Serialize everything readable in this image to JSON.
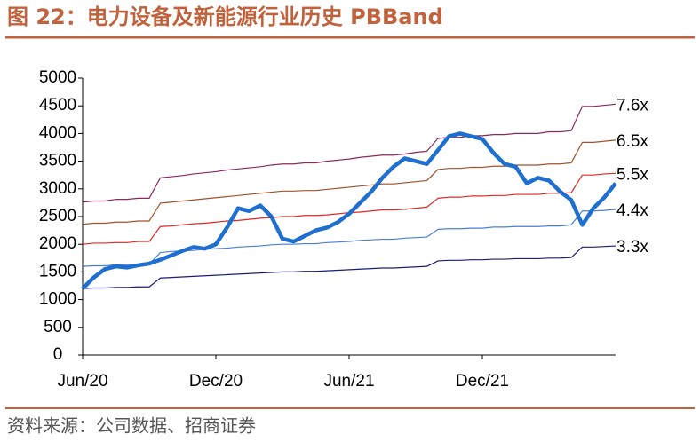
{
  "chart_data": {
    "type": "line",
    "title": "图 22：电力设备及新能源行业历史 PBBand",
    "source": "资料来源：公司数据、招商证券",
    "categories": [
      "Jun/20",
      null,
      null,
      null,
      null,
      null,
      null,
      null,
      null,
      null,
      null,
      null,
      "Dec/20",
      null,
      null,
      null,
      null,
      null,
      null,
      null,
      null,
      null,
      null,
      null,
      "Jun/21",
      null,
      null,
      null,
      null,
      null,
      null,
      null,
      null,
      null,
      null,
      null,
      "Dec/21",
      null,
      null,
      null,
      null,
      null,
      null,
      null,
      null,
      null,
      null,
      null,
      null
    ],
    "ylim": [
      0,
      5000
    ],
    "yticks": [
      0,
      500,
      1000,
      1500,
      2000,
      2500,
      3000,
      3500,
      4000,
      4500,
      5000
    ],
    "series": [
      {
        "name": "3.3x",
        "color": "#1c1c78",
        "values": [
          1200,
          1210,
          1210,
          1220,
          1220,
          1230,
          1230,
          1390,
          1400,
          1410,
          1420,
          1430,
          1440,
          1450,
          1460,
          1470,
          1480,
          1490,
          1500,
          1500,
          1510,
          1510,
          1520,
          1530,
          1540,
          1550,
          1560,
          1570,
          1570,
          1580,
          1590,
          1600,
          1700,
          1710,
          1710,
          1720,
          1720,
          1730,
          1730,
          1740,
          1740,
          1740,
          1750,
          1750,
          1760,
          1950,
          1950,
          1960,
          1970
        ]
      },
      {
        "name": "4.4x",
        "color": "#4a7fd8",
        "values": [
          1600,
          1610,
          1610,
          1630,
          1630,
          1640,
          1640,
          1850,
          1870,
          1880,
          1890,
          1910,
          1920,
          1930,
          1950,
          1960,
          1970,
          1990,
          2000,
          2000,
          2010,
          2010,
          2030,
          2040,
          2050,
          2070,
          2080,
          2090,
          2090,
          2110,
          2120,
          2130,
          2270,
          2280,
          2280,
          2290,
          2290,
          2310,
          2310,
          2320,
          2320,
          2320,
          2330,
          2330,
          2350,
          2600,
          2600,
          2610,
          2630
        ]
      },
      {
        "name": "5.5x",
        "color": "#e02828",
        "values": [
          2000,
          2020,
          2020,
          2030,
          2030,
          2050,
          2050,
          2320,
          2330,
          2350,
          2370,
          2380,
          2400,
          2420,
          2430,
          2450,
          2470,
          2480,
          2500,
          2500,
          2520,
          2520,
          2530,
          2550,
          2570,
          2580,
          2600,
          2620,
          2620,
          2630,
          2650,
          2670,
          2830,
          2850,
          2850,
          2870,
          2870,
          2880,
          2880,
          2900,
          2900,
          2900,
          2920,
          2920,
          2930,
          3250,
          3250,
          3270,
          3280
        ]
      },
      {
        "name": "6.5x",
        "color": "#a0522d",
        "values": [
          2360,
          2380,
          2380,
          2400,
          2400,
          2420,
          2420,
          2740,
          2760,
          2780,
          2800,
          2820,
          2840,
          2860,
          2880,
          2900,
          2920,
          2940,
          2960,
          2960,
          2970,
          2970,
          2990,
          3010,
          3030,
          3050,
          3070,
          3090,
          3090,
          3110,
          3130,
          3150,
          3350,
          3370,
          3370,
          3390,
          3390,
          3410,
          3410,
          3430,
          3430,
          3430,
          3450,
          3450,
          3470,
          3840,
          3840,
          3860,
          3880
        ]
      },
      {
        "name": "7.6x",
        "color": "#8b2a5a",
        "values": [
          2760,
          2780,
          2780,
          2810,
          2810,
          2830,
          2830,
          3200,
          3220,
          3240,
          3270,
          3290,
          3310,
          3340,
          3360,
          3380,
          3400,
          3430,
          3450,
          3450,
          3470,
          3470,
          3500,
          3520,
          3540,
          3570,
          3590,
          3610,
          3610,
          3630,
          3660,
          3680,
          3910,
          3930,
          3930,
          3960,
          3960,
          3980,
          3980,
          4000,
          4000,
          4000,
          4030,
          4030,
          4050,
          4490,
          4490,
          4510,
          4530
        ]
      },
      {
        "color": "#1f6fd0",
        "values": [
          1200,
          1400,
          1550,
          1600,
          1580,
          1620,
          1650,
          1720,
          1800,
          1880,
          1950,
          1920,
          2000,
          2300,
          2650,
          2600,
          2700,
          2500,
          2100,
          2050,
          2150,
          2250,
          2300,
          2400,
          2550,
          2750,
          2950,
          3200,
          3400,
          3550,
          3500,
          3450,
          3700,
          3950,
          4000,
          3950,
          3900,
          3650,
          3450,
          3400,
          3100,
          3200,
          3150,
          2950,
          2800,
          2350,
          2650,
          2850,
          3100
        ]
      }
    ]
  }
}
